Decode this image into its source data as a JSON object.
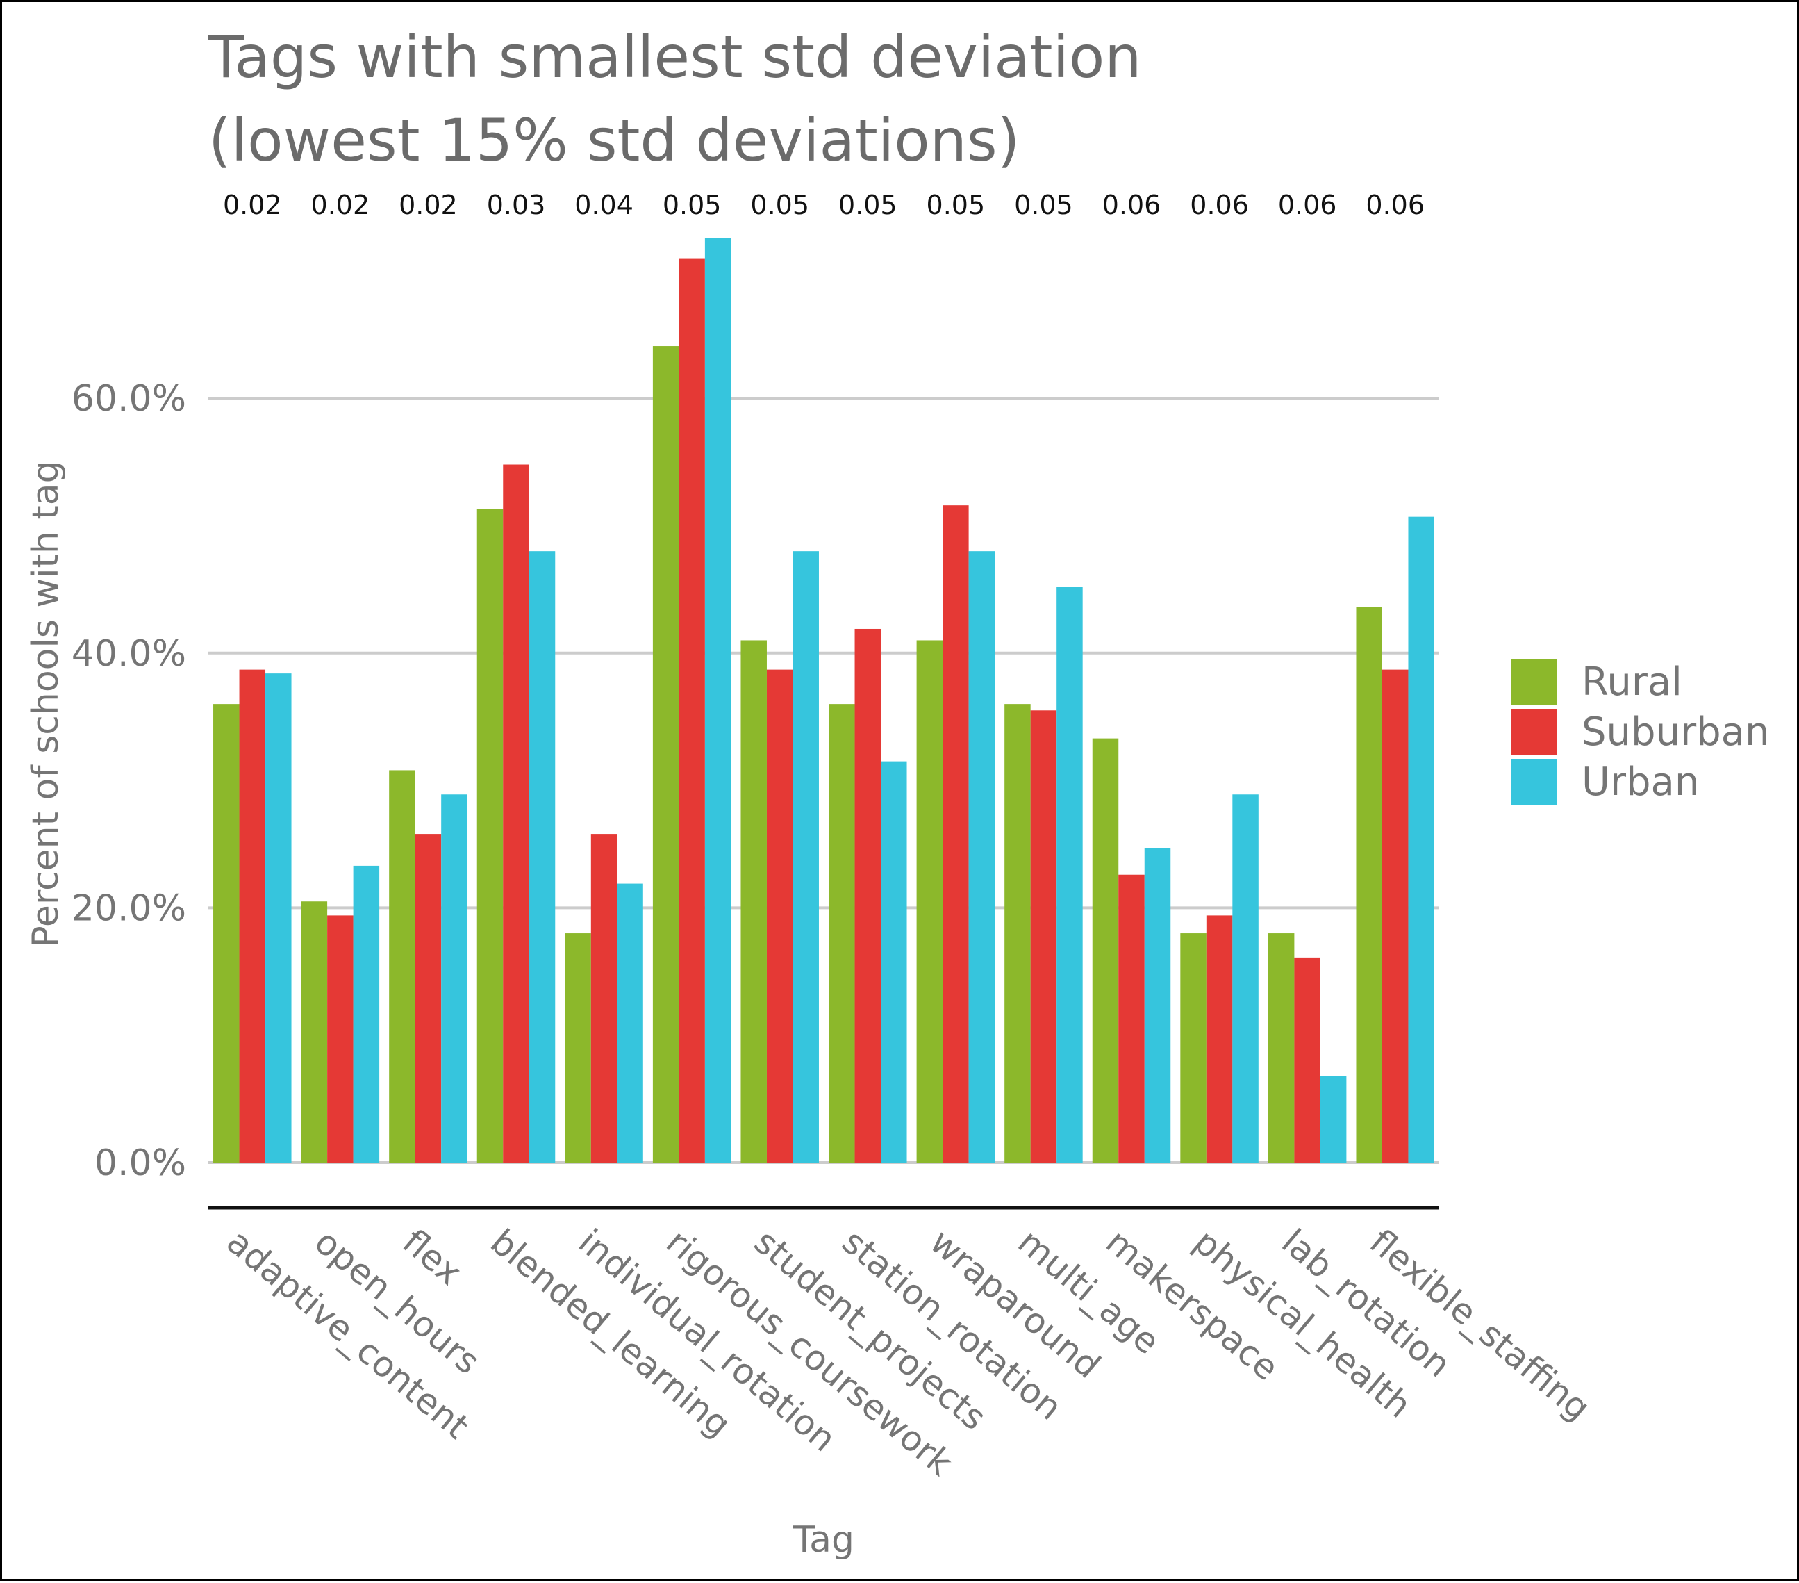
{
  "chart_data": {
    "type": "bar",
    "title_lines": [
      "Tags with smallest std deviation",
      "(lowest 15% std deviations)"
    ],
    "xlabel": "Tag",
    "ylabel": "Percent of schools with tag",
    "ylim": [
      0,
      72
    ],
    "yticks": [
      0,
      20,
      40,
      60
    ],
    "ytick_labels": [
      "0.0%",
      "20.0%",
      "40.0%",
      "60.0%"
    ],
    "grid": true,
    "legend_position": "right",
    "categories": [
      "adaptive_content",
      "open_hours",
      "flex",
      "blended_learning",
      "individual_rotation",
      "rigorous_coursework",
      "student_projects",
      "station_rotation",
      "wraparound",
      "multi_age",
      "makerspace",
      "physical_health",
      "lab_rotation",
      "flexible_staffing"
    ],
    "std_labels": [
      "0.02",
      "0.02",
      "0.02",
      "0.03",
      "0.04",
      "0.05",
      "0.05",
      "0.05",
      "0.05",
      "0.05",
      "0.06",
      "0.06",
      "0.06",
      "0.06"
    ],
    "series": [
      {
        "name": "Rural",
        "color": "#8cb82b",
        "values": [
          36.0,
          20.5,
          30.8,
          51.3,
          18.0,
          64.1,
          41.0,
          36.0,
          41.0,
          36.0,
          33.3,
          18.0,
          18.0,
          43.6
        ]
      },
      {
        "name": "Suburban",
        "color": "#e53935",
        "values": [
          38.7,
          19.4,
          25.8,
          54.8,
          25.8,
          71.0,
          38.7,
          41.9,
          51.6,
          35.5,
          22.6,
          19.4,
          16.1,
          38.7
        ]
      },
      {
        "name": "Urban",
        "color": "#36c5dd",
        "values": [
          38.4,
          23.3,
          28.9,
          48.0,
          21.9,
          72.6,
          48.0,
          31.5,
          48.0,
          45.2,
          24.7,
          28.9,
          6.8,
          50.7
        ]
      }
    ]
  }
}
